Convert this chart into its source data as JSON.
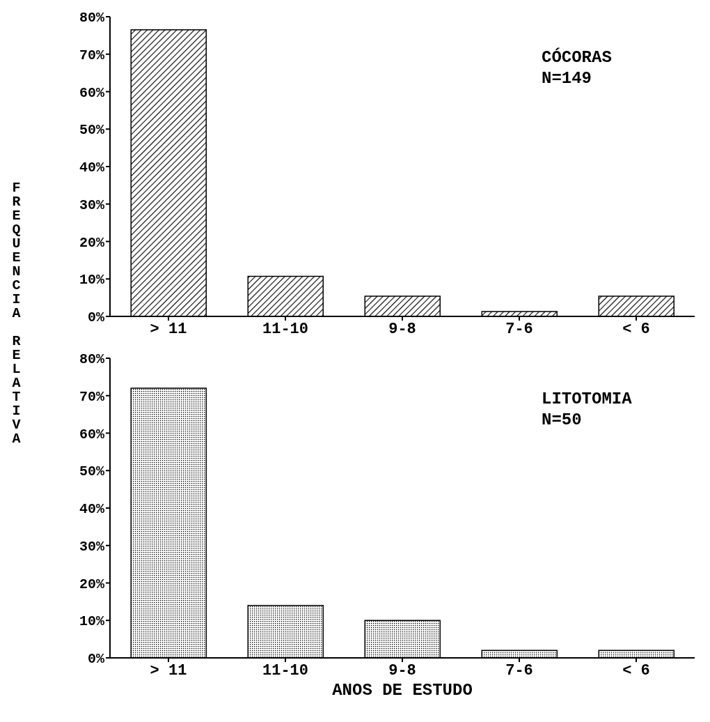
{
  "chart_data": [
    {
      "type": "bar",
      "categories": [
        "> 11",
        "11-10",
        "9-8",
        "7-6",
        "< 6"
      ],
      "values": [
        76.5,
        10.7,
        5.4,
        1.3,
        5.4
      ],
      "color": "#000000",
      "ylim": [
        0,
        80
      ],
      "yticks": [
        {
          "value": 0,
          "label": "0%"
        },
        {
          "value": 10,
          "label": "10%"
        },
        {
          "value": 20,
          "label": "20%"
        },
        {
          "value": 30,
          "label": "30%"
        },
        {
          "value": 40,
          "label": "40%"
        },
        {
          "value": 50,
          "label": "50%"
        },
        {
          "value": 60,
          "label": "60%"
        },
        {
          "value": 70,
          "label": "70%"
        },
        {
          "value": 80,
          "label": "80%"
        }
      ],
      "ylabel": "FREQUENCIA RELATIVA",
      "annotations": [
        "CÓCORAS",
        "N=149"
      ],
      "grid": false,
      "legend": false
    },
    {
      "type": "bar",
      "categories": [
        "> 11",
        "11-10",
        "9-8",
        "7-6",
        "< 6"
      ],
      "values": [
        72,
        14,
        10,
        2,
        2
      ],
      "color": "#000000",
      "ylim": [
        0,
        80
      ],
      "yticks": [
        {
          "value": 0,
          "label": "0%"
        },
        {
          "value": 10,
          "label": "10%"
        },
        {
          "value": 20,
          "label": "20%"
        },
        {
          "value": 30,
          "label": "30%"
        },
        {
          "value": 40,
          "label": "40%"
        },
        {
          "value": 50,
          "label": "50%"
        },
        {
          "value": 60,
          "label": "60%"
        },
        {
          "value": 70,
          "label": "70%"
        },
        {
          "value": 80,
          "label": "80%"
        }
      ],
      "xlabel": "ANOS DE ESTUDO",
      "annotations": [
        "LITOTOMIA",
        "N=50"
      ],
      "grid": false,
      "legend": false
    }
  ]
}
